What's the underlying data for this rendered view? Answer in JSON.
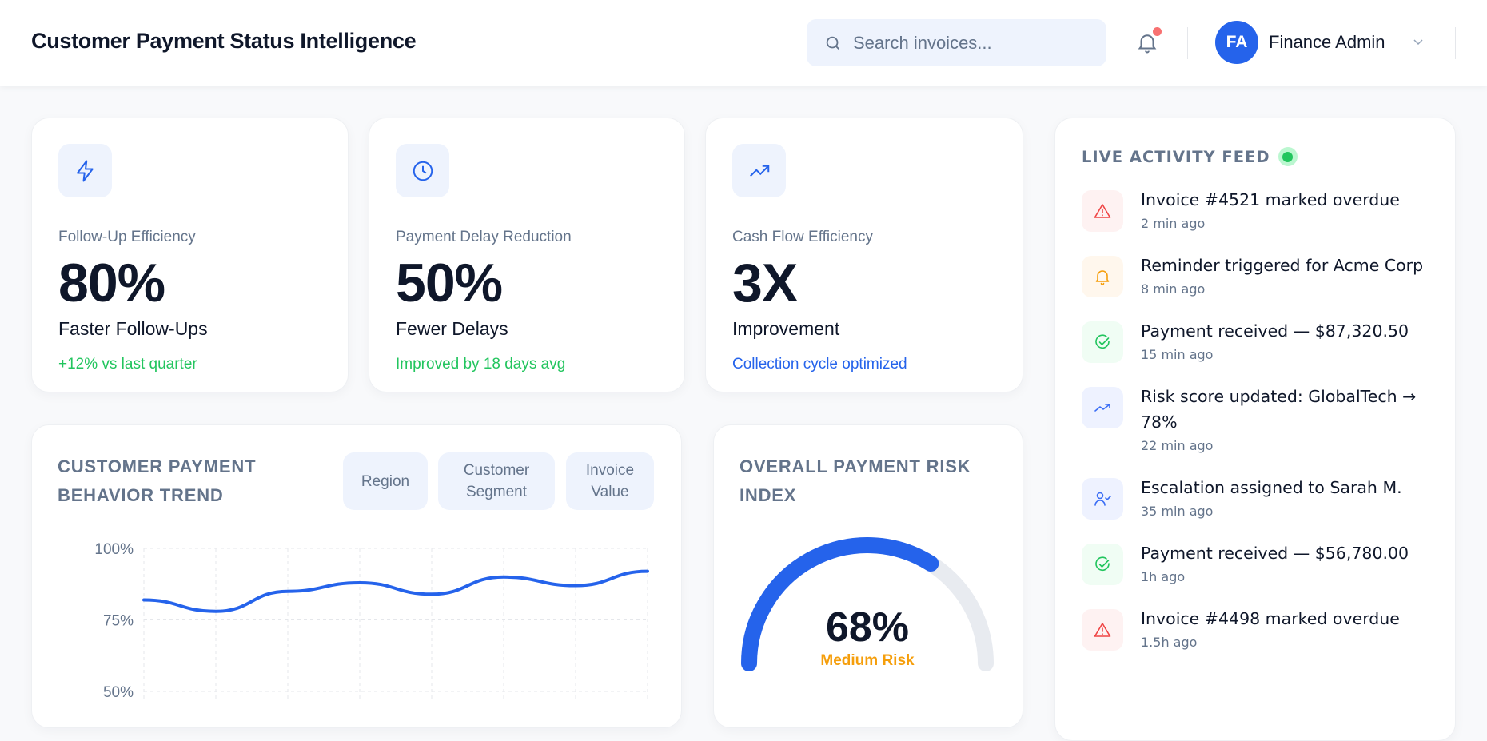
{
  "header": {
    "title": "Customer Payment Status Intelligence",
    "search_placeholder": "Search invoices...",
    "user_initials": "FA",
    "user_name": "Finance Admin",
    "notification_badge_color": "#f87171"
  },
  "kpis": [
    {
      "icon": "lightning-icon",
      "label": "Follow-Up Efficiency",
      "value": "80%",
      "subtitle": "Faster Follow-Ups",
      "footer": "+12% vs last quarter",
      "footer_color": "#22c55e"
    },
    {
      "icon": "clock-icon",
      "label": "Payment Delay Reduction",
      "value": "50%",
      "subtitle": "Fewer Delays",
      "footer": "Improved by 18 days avg",
      "footer_color": "#22c55e"
    },
    {
      "icon": "trending-up-icon",
      "label": "Cash Flow Efficiency",
      "value": "3X",
      "subtitle": "Improvement",
      "footer": "Collection cycle optimized",
      "footer_color": "#2563eb"
    }
  ],
  "trend": {
    "title_line1": "CUSTOMER PAYMENT",
    "title_line2": "BEHAVIOR TREND",
    "filters": [
      {
        "line1": "Region",
        "line2": ""
      },
      {
        "line1": "Customer",
        "line2": "Segment"
      },
      {
        "line1": "Invoice",
        "line2": "Value"
      }
    ]
  },
  "chart_data": {
    "type": "line",
    "title": "CUSTOMER PAYMENT BEHAVIOR TREND",
    "y_ticks": [
      "100%",
      "75%",
      "50%"
    ],
    "ylim": [
      50,
      100
    ],
    "grid": true,
    "series": [
      {
        "values": [
          82,
          78,
          85,
          88,
          84,
          90,
          87,
          92
        ],
        "color": "#2563eb"
      }
    ]
  },
  "risk": {
    "title_line1": "OVERALL PAYMENT RISK",
    "title_line2": "INDEX",
    "value": 68,
    "value_label": "68%",
    "level": "Medium Risk",
    "level_color": "#f59e0b",
    "accent": "#2563eb"
  },
  "feed": {
    "title": "LIVE ACTIVITY FEED",
    "live_color": "#22c55e",
    "items": [
      {
        "icon": "alert-triangle-icon",
        "tone": "red",
        "text": "Invoice #4521 marked overdue",
        "time": "2 min ago"
      },
      {
        "icon": "bell-icon",
        "tone": "orange",
        "text": "Reminder triggered for Acme Corp",
        "time": "8 min ago"
      },
      {
        "icon": "check-circle-icon",
        "tone": "green",
        "text": "Payment received — $87,320.50",
        "time": "15 min ago"
      },
      {
        "icon": "trending-up-icon",
        "tone": "blue",
        "text": "Risk score updated: GlobalTech → 78%",
        "time": "22 min ago"
      },
      {
        "icon": "user-check-icon",
        "tone": "blue",
        "text": "Escalation assigned to Sarah M.",
        "time": "35 min ago"
      },
      {
        "icon": "check-circle-icon",
        "tone": "green",
        "text": "Payment received — $56,780.00",
        "time": "1h ago"
      },
      {
        "icon": "alert-triangle-icon",
        "tone": "red",
        "text": "Invoice #4498 marked overdue",
        "time": "1.5h ago"
      }
    ]
  }
}
